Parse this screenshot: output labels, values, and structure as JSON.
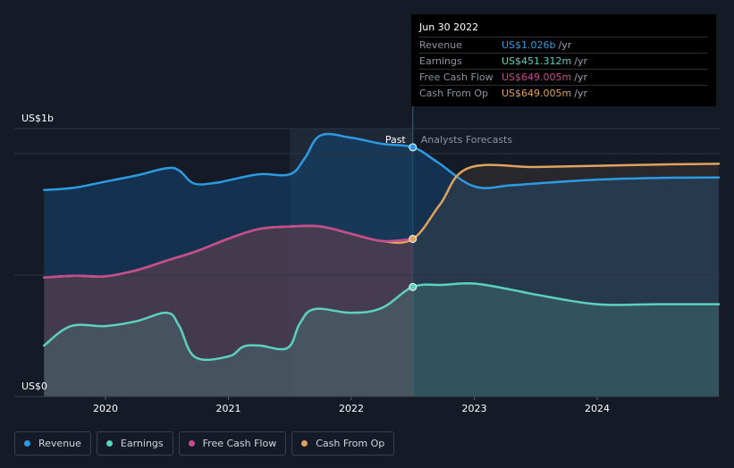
{
  "chart_data": {
    "type": "area",
    "y_axis": {
      "top_label": "US$1b",
      "bottom_label": "US$0",
      "ylim": [
        0,
        1.1
      ]
    },
    "x_ticks": [
      "2020",
      "2021",
      "2022",
      "2023",
      "2024"
    ],
    "regions": {
      "past_label": "Past",
      "forecast_label": "Analysts Forecasts",
      "divider_x": 2022.5
    },
    "series": [
      {
        "name": "Revenue",
        "color": "#2d9be3",
        "points": [
          [
            2019.5,
            0.85
          ],
          [
            2019.75,
            0.86
          ],
          [
            2020.0,
            0.885
          ],
          [
            2020.25,
            0.91
          ],
          [
            2020.5,
            0.94
          ],
          [
            2020.6,
            0.93
          ],
          [
            2020.72,
            0.877
          ],
          [
            2020.9,
            0.88
          ],
          [
            2021.0,
            0.89
          ],
          [
            2021.25,
            0.915
          ],
          [
            2021.5,
            0.915
          ],
          [
            2021.62,
            0.98
          ],
          [
            2021.75,
            1.075
          ],
          [
            2022.0,
            1.065
          ],
          [
            2022.25,
            1.04
          ],
          [
            2022.5,
            1.026
          ],
          [
            2022.7,
            0.965
          ],
          [
            2023.0,
            0.865
          ],
          [
            2023.3,
            0.87
          ],
          [
            2023.5,
            0.877
          ],
          [
            2024.0,
            0.893
          ],
          [
            2024.5,
            0.9
          ],
          [
            2024.99,
            0.902
          ]
        ]
      },
      {
        "name": "Earnings",
        "color": "#5cd1bd",
        "points": [
          [
            2019.5,
            0.21
          ],
          [
            2019.72,
            0.29
          ],
          [
            2020.0,
            0.29
          ],
          [
            2020.25,
            0.31
          ],
          [
            2020.5,
            0.345
          ],
          [
            2020.6,
            0.29
          ],
          [
            2020.73,
            0.162
          ],
          [
            2021.0,
            0.165
          ],
          [
            2021.12,
            0.205
          ],
          [
            2021.25,
            0.21
          ],
          [
            2021.48,
            0.2
          ],
          [
            2021.58,
            0.3
          ],
          [
            2021.7,
            0.36
          ],
          [
            2022.0,
            0.345
          ],
          [
            2022.25,
            0.365
          ],
          [
            2022.5,
            0.451
          ],
          [
            2022.75,
            0.46
          ],
          [
            2023.0,
            0.465
          ],
          [
            2023.3,
            0.44
          ],
          [
            2023.5,
            0.42
          ],
          [
            2024.0,
            0.38
          ],
          [
            2024.5,
            0.38
          ],
          [
            2024.99,
            0.38
          ]
        ]
      },
      {
        "name": "Free Cash Flow",
        "color": "#c74b8f",
        "points": [
          [
            2019.5,
            0.49
          ],
          [
            2019.75,
            0.497
          ],
          [
            2020.0,
            0.495
          ],
          [
            2020.25,
            0.52
          ],
          [
            2020.5,
            0.56
          ],
          [
            2020.75,
            0.6
          ],
          [
            2021.0,
            0.65
          ],
          [
            2021.25,
            0.69
          ],
          [
            2021.5,
            0.7
          ],
          [
            2021.75,
            0.7
          ],
          [
            2022.0,
            0.67
          ],
          [
            2022.25,
            0.64
          ],
          [
            2022.5,
            0.649
          ]
        ]
      },
      {
        "name": "Cash From Op",
        "color": "#e0a35d",
        "points": [
          [
            2019.5,
            0.49
          ],
          [
            2019.75,
            0.497
          ],
          [
            2020.0,
            0.495
          ],
          [
            2020.25,
            0.52
          ],
          [
            2020.5,
            0.56
          ],
          [
            2020.75,
            0.6
          ],
          [
            2021.0,
            0.65
          ],
          [
            2021.25,
            0.69
          ],
          [
            2021.5,
            0.7
          ],
          [
            2021.75,
            0.7
          ],
          [
            2022.0,
            0.67
          ],
          [
            2022.25,
            0.64
          ],
          [
            2022.5,
            0.649
          ],
          [
            2022.72,
            0.79
          ],
          [
            2022.95,
            0.94
          ],
          [
            2023.5,
            0.945
          ],
          [
            2024.0,
            0.95
          ],
          [
            2024.5,
            0.955
          ],
          [
            2024.99,
            0.958
          ]
        ]
      }
    ],
    "highlight_x": 2022.5,
    "legend_placement": "bottom-left"
  },
  "tooltip": {
    "date": "Jun 30 2022",
    "rows": [
      {
        "label": "Revenue",
        "value": "US$1.026b",
        "unit": "/yr",
        "color": "#2d9be3"
      },
      {
        "label": "Earnings",
        "value": "US$451.312m",
        "unit": "/yr",
        "color": "#5cd1bd"
      },
      {
        "label": "Free Cash Flow",
        "value": "US$649.005m",
        "unit": "/yr",
        "color": "#c74b8f"
      },
      {
        "label": "Cash From Op",
        "value": "US$649.005m",
        "unit": "/yr",
        "color": "#e0a35d"
      }
    ]
  },
  "legend": [
    {
      "label": "Revenue",
      "color": "#2d9be3"
    },
    {
      "label": "Earnings",
      "color": "#5cd1bd"
    },
    {
      "label": "Free Cash Flow",
      "color": "#c74b8f"
    },
    {
      "label": "Cash From Op",
      "color": "#e0a35d"
    }
  ]
}
